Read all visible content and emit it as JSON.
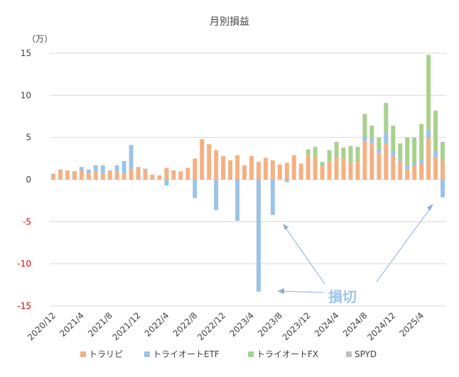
{
  "chart_data": {
    "type": "bar",
    "stacked": true,
    "title": "月別損益",
    "y_unit_label": "（万）",
    "ylim": [
      -15,
      15
    ],
    "y_ticks": [
      "15",
      "10",
      "5",
      "0",
      "-5",
      "-10",
      "-15"
    ],
    "y_tick_values": [
      15,
      10,
      5,
      0,
      -5,
      -10,
      -15
    ],
    "x_tick_labels": [
      "2020/12",
      "2021/4",
      "2021/8",
      "2021/12",
      "2022/4",
      "2022/8",
      "2022/12",
      "2023/4",
      "2023/8",
      "2023/12",
      "2024/4",
      "2024/8",
      "2024/12",
      "2025/4"
    ],
    "x_tick_indices": [
      0,
      4,
      8,
      12,
      16,
      20,
      24,
      28,
      32,
      36,
      40,
      44,
      48,
      52
    ],
    "legend": "bottom",
    "grid": "horizontal",
    "categories": [
      "2020/12",
      "2021/1",
      "2021/2",
      "2021/3",
      "2021/4",
      "2021/5",
      "2021/6",
      "2021/7",
      "2021/8",
      "2021/9",
      "2021/10",
      "2021/11",
      "2021/12",
      "2022/1",
      "2022/2",
      "2022/3",
      "2022/4",
      "2022/5",
      "2022/6",
      "2022/7",
      "2022/8",
      "2022/9",
      "2022/10",
      "2022/11",
      "2022/12",
      "2023/1",
      "2023/2",
      "2023/3",
      "2023/4",
      "2023/5",
      "2023/6",
      "2023/7",
      "2023/8",
      "2023/9",
      "2023/10",
      "2023/11",
      "2023/12",
      "2024/1",
      "2024/2",
      "2024/3",
      "2024/4",
      "2024/5",
      "2024/6",
      "2024/7",
      "2024/8",
      "2024/9",
      "2024/10",
      "2024/11",
      "2024/12",
      "2025/1",
      "2025/2",
      "2025/3",
      "2025/4",
      "2025/5",
      "2025/6",
      "2025/7"
    ],
    "series": [
      {
        "name": "トラリピ",
        "color": "#f4b183",
        "values": [
          0.7,
          1.2,
          1.1,
          1.0,
          1.1,
          0.8,
          0.9,
          0.7,
          1.0,
          0.9,
          0.7,
          1.3,
          1.4,
          1.1,
          0.6,
          0.5,
          1.4,
          1.1,
          1.0,
          1.4,
          2.5,
          4.8,
          4.2,
          3.5,
          2.8,
          2.3,
          2.9,
          1.7,
          2.8,
          2.1,
          2.6,
          2.3,
          1.8,
          2.0,
          2.9,
          1.9,
          2.8,
          2.6,
          1.6,
          2.2,
          2.6,
          2.5,
          2.0,
          2.1,
          4.6,
          4.4,
          3.2,
          4.3,
          2.8,
          2.1,
          1.2,
          1.6,
          1.9,
          5.0,
          2.7,
          2.3
        ]
      },
      {
        "name": "トライオートETF",
        "color": "#9dc3e6",
        "values": [
          0,
          0,
          0,
          0,
          0.4,
          0.4,
          0.8,
          1.0,
          0.1,
          0.8,
          1.5,
          2.8,
          0.1,
          0.2,
          0,
          0,
          -0.7,
          0,
          0,
          0,
          -2.2,
          0,
          0,
          -3.6,
          0,
          0,
          -4.9,
          0,
          0,
          -13.3,
          0,
          -4.2,
          0,
          -0.3,
          0,
          0,
          0,
          0,
          0,
          0,
          0,
          0,
          0,
          0,
          0.5,
          0.5,
          0.4,
          1.3,
          0.6,
          0.2,
          0.5,
          0.3,
          0.4,
          1.0,
          0.7,
          -2.1
        ]
      },
      {
        "name": "トライオートFX",
        "color": "#a9d18e",
        "values": [
          0,
          0,
          0,
          0,
          0,
          0,
          0,
          0,
          0,
          0,
          0,
          0,
          0,
          0,
          0,
          0,
          0,
          0,
          0,
          0,
          0,
          0,
          0,
          0,
          0,
          0,
          0,
          0,
          0,
          0,
          0,
          0,
          0,
          0,
          0,
          0,
          0.8,
          1.3,
          0.5,
          1.3,
          1.9,
          1.3,
          2.0,
          1.8,
          2.7,
          1.5,
          1.4,
          3.5,
          3.0,
          2.0,
          3.3,
          3.1,
          4.3,
          8.8,
          4.8,
          2.0
        ]
      },
      {
        "name": "SPYD",
        "color": "#bfbfbf",
        "values": [
          0,
          0,
          0,
          0,
          0,
          0,
          0,
          0,
          0,
          0,
          0,
          0,
          0,
          0,
          0,
          0,
          0,
          0,
          0,
          0,
          0,
          0,
          0,
          0,
          0,
          0,
          0,
          0,
          0,
          0,
          0,
          0,
          0,
          0,
          0,
          0,
          0,
          0,
          0,
          0,
          0,
          0,
          0,
          0,
          0,
          0,
          0,
          0,
          0,
          0,
          0,
          0,
          0,
          0,
          0,
          0.2
        ]
      }
    ],
    "annotation": {
      "text": "損切",
      "color": "#9dc3e6"
    }
  }
}
